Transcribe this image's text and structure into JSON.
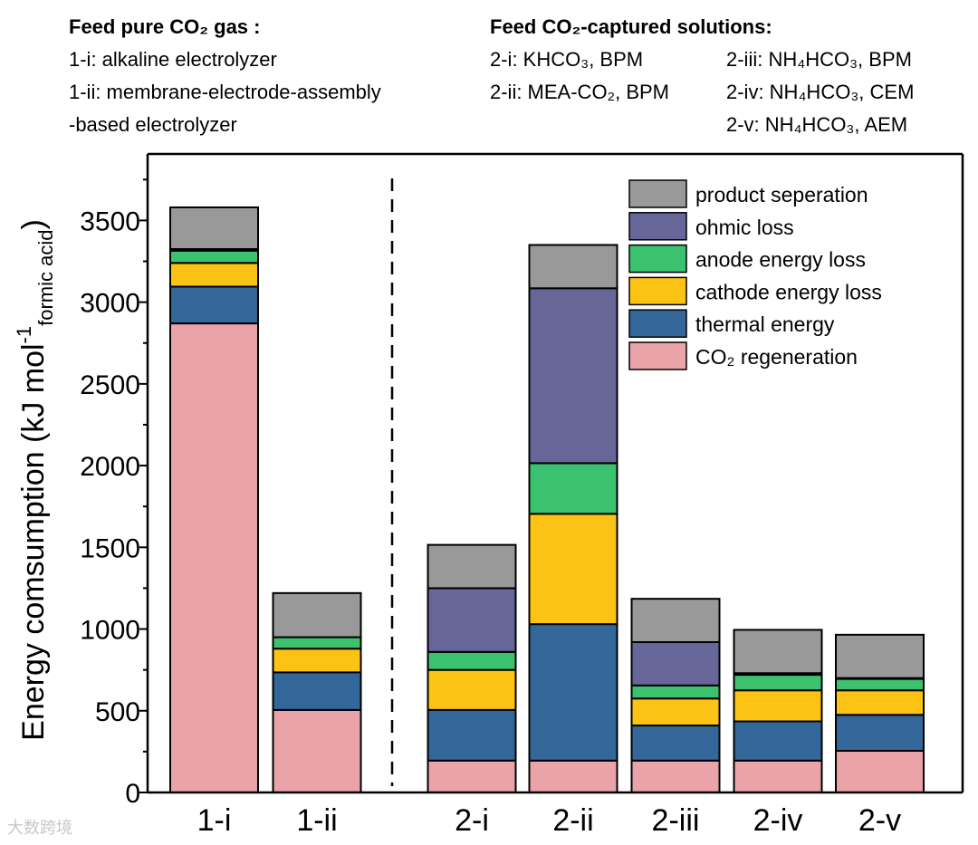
{
  "annotations": {
    "group1_title": "Feed pure CO₂ gas :",
    "group1_items": [
      "1-i: alkaline electrolyzer",
      "1-ii: membrane-electrode-assembly",
      "-based electrolyzer"
    ],
    "group2_title": "Feed CO₂-captured solutions:",
    "group2_col1": [
      "2-i: KHCO₃, BPM",
      "2-ii: MEA-CO₂, BPM"
    ],
    "group2_col2": [
      "2-iii: NH₄HCO₃, BPM",
      "2-iv: NH₄HCO₃, CEM",
      "2-v: NH₄HCO₃, AEM"
    ]
  },
  "watermark": "大数跨境",
  "chart_data": {
    "type": "bar",
    "stacked": true,
    "title": "",
    "xlabel": "",
    "ylabel": {
      "main": "Energy comsumption (kJ mol",
      "sup": "-1",
      "sub": "formic acid",
      "end": ")"
    },
    "ylim": [
      0,
      3800
    ],
    "yticks": [
      0,
      500,
      1000,
      1500,
      2000,
      2500,
      3000,
      3500
    ],
    "categories": [
      "1-i",
      "1-ii",
      "2-i",
      "2-ii",
      "2-iii",
      "2-iv",
      "2-v"
    ],
    "separator_after_index": 1,
    "legend_position": "top-right",
    "series": [
      {
        "name": "CO₂ regeneration",
        "color": "#EAA3A9",
        "values": [
          2870,
          505,
          195,
          195,
          195,
          195,
          255
        ]
      },
      {
        "name": "thermal energy",
        "color": "#336699",
        "values": [
          225,
          230,
          310,
          835,
          215,
          240,
          220
        ]
      },
      {
        "name": "cathode energy loss",
        "color": "#FDC314",
        "values": [
          145,
          145,
          245,
          675,
          165,
          190,
          150
        ]
      },
      {
        "name": "anode energy loss",
        "color": "#3CC16F",
        "values": [
          75,
          70,
          110,
          310,
          80,
          95,
          70
        ]
      },
      {
        "name": "ohmic loss",
        "color": "#666699",
        "values": [
          10,
          0,
          390,
          1070,
          265,
          10,
          5
        ]
      },
      {
        "name": "product seperation",
        "color": "#999999",
        "values": [
          255,
          270,
          265,
          265,
          265,
          265,
          265
        ]
      }
    ]
  }
}
